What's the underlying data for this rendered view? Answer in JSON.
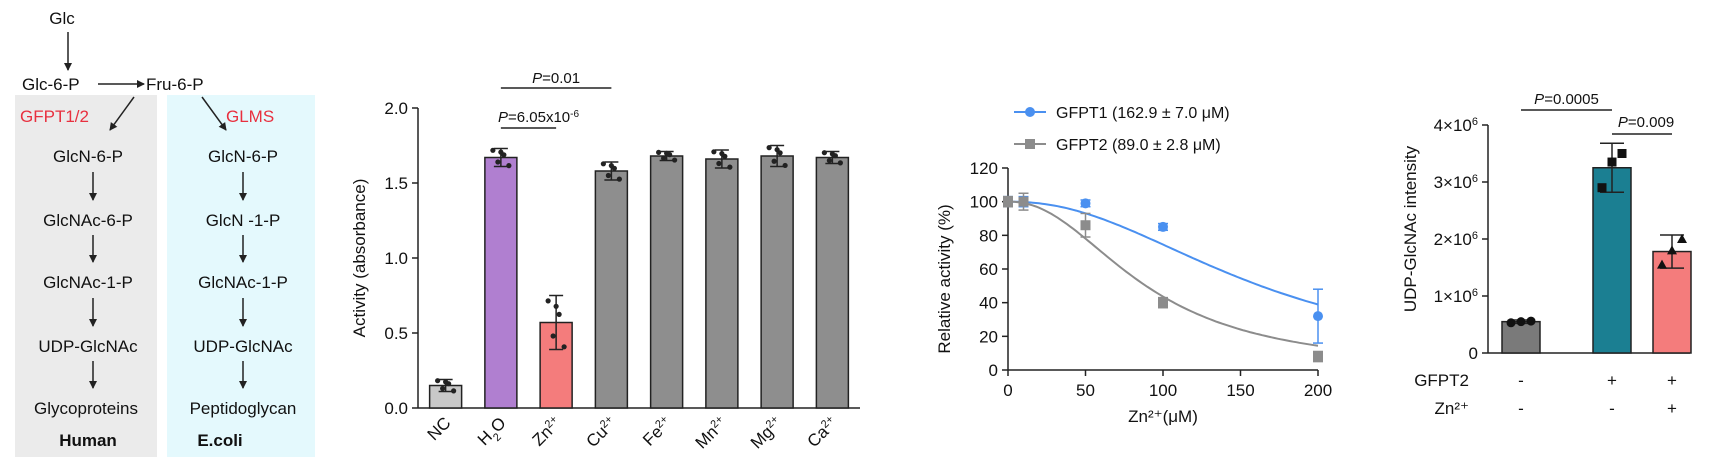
{
  "pathway": {
    "top": [
      "Glc",
      "Glc-6-P",
      "Fru-6-P"
    ],
    "human": {
      "enzyme": "GFPT1/2",
      "steps": [
        "GlcN-6-P",
        "GlcNAc-6-P",
        "GlcNAc-1-P",
        "UDP-GlcNAc",
        "Glycoproteins"
      ],
      "organism": "Human"
    },
    "ecoli": {
      "enzyme": "GLMS",
      "steps": [
        "GlcN-6-P",
        "GlcN -1-P",
        "GlcNAc-1-P",
        "UDP-GlcNAc",
        "Peptidoglycan"
      ],
      "organism": "E.coli"
    },
    "colors": {
      "enzyme": "#e8303f",
      "human_bg": "#ebebeb",
      "ecoli_bg": "#e4f9fd"
    }
  },
  "chart_data": [
    {
      "type": "bar",
      "ylabel": "Activity (absorbance)",
      "ylim": [
        0,
        2.0
      ],
      "yticks": [
        "0.0",
        "0.5",
        "1.0",
        "1.5",
        "2.0"
      ],
      "categories": [
        "NC",
        "H2O",
        "Zn2+",
        "Cu2+",
        "Fe2+",
        "Mn2+",
        "Mg2+",
        "Ca2+"
      ],
      "category_labels": [
        {
          "base": "NC",
          "sub": "",
          "sup": ""
        },
        {
          "base": "H",
          "sub": "2",
          "after": "O",
          "sup": ""
        },
        {
          "base": "Zn",
          "sub": "",
          "sup": "2+"
        },
        {
          "base": "Cu",
          "sub": "",
          "sup": "2+"
        },
        {
          "base": "Fe",
          "sub": "",
          "sup": "2+"
        },
        {
          "base": "Mn",
          "sub": "",
          "sup": "2+"
        },
        {
          "base": "Mg",
          "sub": "",
          "sup": "2+"
        },
        {
          "base": "Ca",
          "sub": "",
          "sup": "2+"
        }
      ],
      "values": [
        0.15,
        1.67,
        0.57,
        1.58,
        1.68,
        1.66,
        1.68,
        1.67
      ],
      "errors": [
        0.04,
        0.06,
        0.18,
        0.06,
        0.03,
        0.06,
        0.07,
        0.04
      ],
      "colors": [
        "#c8c8c8",
        "#b07fd0",
        "#f47c7c",
        "#8e8e8e",
        "#8e8e8e",
        "#8e8e8e",
        "#8e8e8e",
        "#8e8e8e"
      ],
      "annotations": [
        {
          "text": "P=0.01",
          "from": "H2O",
          "to": "Cu2+"
        },
        {
          "text": "P=6.05x10-6",
          "from": "H2O",
          "to": "Zn2+"
        }
      ]
    },
    {
      "type": "line",
      "xlabel": "Zn²⁺(μM)",
      "ylabel": "Relative activity (%)",
      "xlim": [
        0,
        200
      ],
      "ylim": [
        0,
        120
      ],
      "xticks": [
        "0",
        "50",
        "100",
        "150",
        "200"
      ],
      "yticks": [
        "0",
        "20",
        "40",
        "60",
        "80",
        "100",
        "120"
      ],
      "series": [
        {
          "name": "GFPT1 (162.9 ± 7.0 μM)",
          "color": "#4a90f0",
          "marker": "circle",
          "x": [
            0,
            10,
            50,
            100,
            200
          ],
          "y": [
            100,
            100,
            99,
            85,
            32
          ],
          "err": [
            3,
            3,
            2,
            2,
            16
          ],
          "ic50": 162.9
        },
        {
          "name": "GFPT2 (89.0 ± 2.8 μM)",
          "color": "#8c8c8c",
          "marker": "square",
          "x": [
            0,
            10,
            50,
            100,
            200
          ],
          "y": [
            100,
            100,
            86,
            40,
            8
          ],
          "err": [
            3,
            5,
            7,
            3,
            3
          ],
          "ic50": 89.0
        }
      ],
      "legend": "top"
    },
    {
      "type": "bar",
      "ylabel": "UDP-GlcNAc intensity",
      "ylim": [
        0,
        4000000
      ],
      "yticks": [
        {
          "base": "0",
          "exp": ""
        },
        {
          "base": "1×10",
          "exp": "6"
        },
        {
          "base": "2×10",
          "exp": "6"
        },
        {
          "base": "3×10",
          "exp": "6"
        },
        {
          "base": "4×10",
          "exp": "6"
        }
      ],
      "values": [
        550000,
        3250000,
        1780000
      ],
      "errors": [
        30000,
        430000,
        290000
      ],
      "points": [
        [
          530000,
          550000,
          560000
        ],
        [
          2900000,
          3350000,
          3500000
        ],
        [
          1550000,
          1800000,
          2000000
        ]
      ],
      "colors": [
        "#7a7a7a",
        "#1b7f92",
        "#f47c7c"
      ],
      "condition_rows": [
        {
          "label": "GFPT2",
          "values": [
            "-",
            "+",
            "+"
          ]
        },
        {
          "label": "Zn²⁺",
          "values": [
            "-",
            "-",
            "+"
          ]
        }
      ],
      "annotations": [
        {
          "text": "P=0.0005",
          "from": 0,
          "to": 1
        },
        {
          "text": "P=0.009",
          "from": 1,
          "to": 2
        }
      ]
    }
  ]
}
